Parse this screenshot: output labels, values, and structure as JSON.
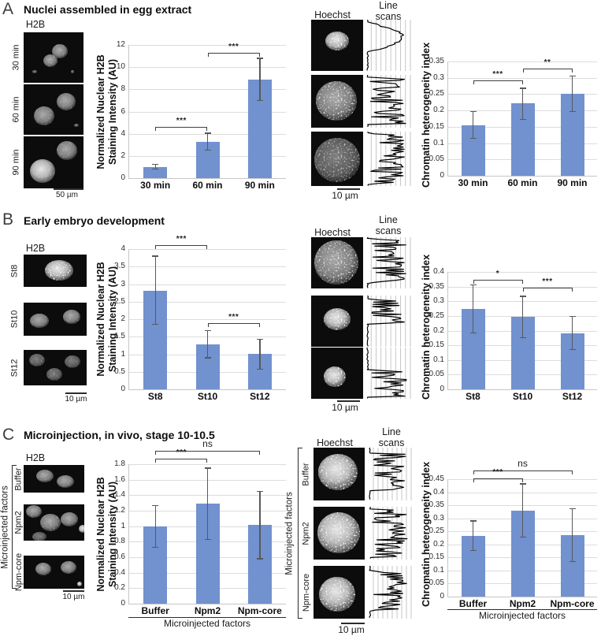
{
  "figure": {
    "panels": [
      {
        "letter": "A",
        "title": "Nuclei assembled in egg extract",
        "h2b_label": "H2B",
        "hoechst_label": "Hoechst",
        "linescan_label": "Line scans",
        "rows": [
          "30 min",
          "60 min",
          "90 min"
        ],
        "h2b_scale": "50 µm",
        "hoechst_scale": "10 µm"
      },
      {
        "letter": "B",
        "title": "Early embryo development",
        "h2b_label": "H2B",
        "hoechst_label": "Hoechst",
        "linescan_label": "Line scans",
        "rows": [
          "St8",
          "St10",
          "St12"
        ],
        "h2b_scale": "10 µm",
        "hoechst_scale": "10 µm"
      },
      {
        "letter": "C",
        "title": "Microinjection, in vivo, stage 10-10.5",
        "h2b_label": "H2B",
        "hoechst_label": "Hoechst",
        "linescan_label": "Line scans",
        "rows": [
          "Buffer",
          "Npm2",
          "Npm-core"
        ],
        "group_label": "Microinjected factors",
        "h2b_scale": "10 µm",
        "hoechst_scale": "10 µm"
      }
    ]
  },
  "colors": {
    "bar": "#7191cf",
    "grid": "#dcdcdc",
    "error": "#595959"
  },
  "chart_data": [
    {
      "type": "bar",
      "categories": [
        "30 min",
        "60 min",
        "90 min"
      ],
      "values": [
        1.0,
        3.3,
        8.9
      ],
      "errors": [
        [
          0.82,
          1.24
        ],
        [
          2.55,
          4.05
        ],
        [
          7.0,
          10.8
        ]
      ],
      "ylabel_lines": [
        "Normalized Nuclear H2B",
        "Staining Intensity (AU)"
      ],
      "ylim": [
        0,
        12
      ],
      "ytick_step": 2,
      "significance": [
        {
          "from": 0,
          "to": 1,
          "y": 4.6,
          "label": "***"
        },
        {
          "from": 1,
          "to": 2,
          "y": 11.3,
          "label": "***"
        }
      ]
    },
    {
      "type": "bar",
      "categories": [
        "30 min",
        "60 min",
        "90 min"
      ],
      "values": [
        0.155,
        0.222,
        0.252
      ],
      "errors": [
        [
          0.115,
          0.197
        ],
        [
          0.173,
          0.268
        ],
        [
          0.196,
          0.306
        ]
      ],
      "ylabel_lines": [
        "Chromatin heterogeneity index"
      ],
      "ylim": [
        0,
        0.35
      ],
      "ytick_step": 0.05,
      "significance": [
        {
          "from": 0,
          "to": 1,
          "y": 0.292,
          "label": "***"
        },
        {
          "from": 1,
          "to": 2,
          "y": 0.328,
          "label": "**"
        }
      ]
    },
    {
      "type": "bar",
      "categories": [
        "St8",
        "St10",
        "St12"
      ],
      "values": [
        2.82,
        1.28,
        1.01
      ],
      "errors": [
        [
          1.85,
          3.8
        ],
        [
          0.9,
          1.67
        ],
        [
          0.58,
          1.42
        ]
      ],
      "ylabel_lines": [
        "Normalized Nuclear H2B",
        "Staining Intensity (AU)"
      ],
      "ylim": [
        0,
        4
      ],
      "ytick_step": 0.5,
      "significance": [
        {
          "from": 0,
          "to": 1,
          "y": 4.12,
          "label": "***"
        },
        {
          "from": 1,
          "to": 2,
          "y": 1.9,
          "label": "***"
        }
      ]
    },
    {
      "type": "bar",
      "categories": [
        "St8",
        "St10",
        "St12"
      ],
      "values": [
        0.274,
        0.247,
        0.192
      ],
      "errors": [
        [
          0.192,
          0.356
        ],
        [
          0.175,
          0.317
        ],
        [
          0.136,
          0.248
        ]
      ],
      "ylabel_lines": [
        "Chromatin heterogeneity index"
      ],
      "ylim": [
        0,
        0.4
      ],
      "ytick_step": 0.05,
      "significance": [
        {
          "from": 0,
          "to": 1,
          "y": 0.373,
          "label": "*"
        },
        {
          "from": 1,
          "to": 2,
          "y": 0.347,
          "label": "***"
        }
      ]
    },
    {
      "type": "bar",
      "categories": [
        "Buffer",
        "Npm2",
        "Npm-core"
      ],
      "values": [
        1.0,
        1.29,
        1.02
      ],
      "errors": [
        [
          0.73,
          1.27
        ],
        [
          0.83,
          1.75
        ],
        [
          0.58,
          1.45
        ]
      ],
      "ylabel_lines": [
        "Normalized Nuclear H2B",
        "Staining Intensity (AU)"
      ],
      "xlabel": "Microinjected factors",
      "ylim": [
        0,
        1.8
      ],
      "ytick_step": 0.2,
      "significance": [
        {
          "from": 0,
          "to": 1,
          "y": 1.87,
          "label": "***"
        },
        {
          "from": 0,
          "to": 2,
          "y": 1.97,
          "label": "ns"
        }
      ]
    },
    {
      "type": "bar",
      "categories": [
        "Buffer",
        "Npm2",
        "Npm-core"
      ],
      "values": [
        0.233,
        0.33,
        0.235
      ],
      "errors": [
        [
          0.177,
          0.29
        ],
        [
          0.228,
          0.432
        ],
        [
          0.134,
          0.337
        ]
      ],
      "ylabel_lines": [
        "Chromatin heterogeneity index"
      ],
      "xlabel": "Microinjected factors",
      "ylim": [
        0,
        0.45
      ],
      "ytick_step": 0.05,
      "significance": [
        {
          "from": 0,
          "to": 1,
          "y": 0.452,
          "label": "***"
        },
        {
          "from": 0,
          "to": 2,
          "y": 0.482,
          "label": "ns"
        }
      ]
    }
  ]
}
